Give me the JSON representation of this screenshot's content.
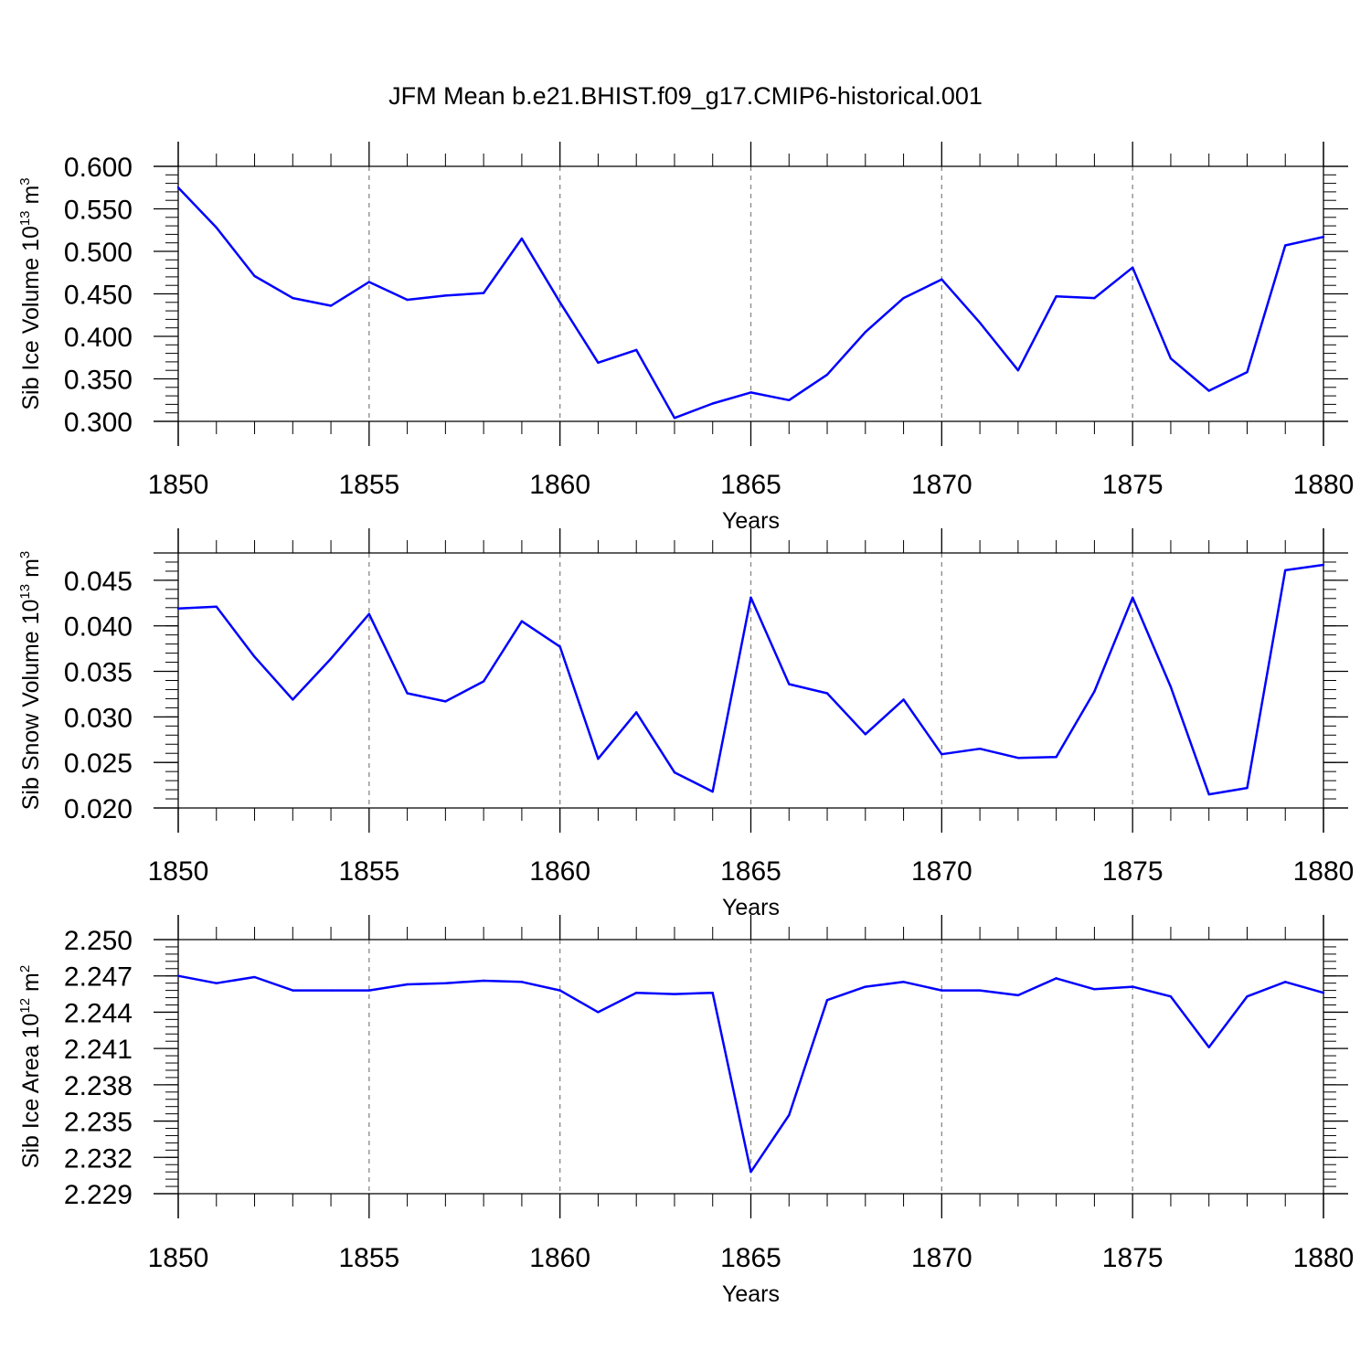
{
  "title": "JFM Mean b.e21.BHIST.f09_g17.CMIP6-historical.001",
  "line_color": "#0000ff",
  "chart_data": [
    {
      "type": "line",
      "xlabel": "Years",
      "ylabel": {
        "prefix": "Sib Ice Volume 10",
        "exp": "13",
        "unit": " m",
        "unit_exp": "3"
      },
      "xlim": [
        1850,
        1880
      ],
      "ylim": [
        0.3,
        0.6
      ],
      "xticks": [
        "1850",
        "1855",
        "1860",
        "1865",
        "1870",
        "1875",
        "1880"
      ],
      "yticks": [
        "0.300",
        "0.350",
        "0.400",
        "0.450",
        "0.500",
        "0.550",
        "0.600"
      ],
      "grid_x": true,
      "x": [
        1850,
        1851,
        1852,
        1853,
        1854,
        1855,
        1856,
        1857,
        1858,
        1859,
        1860,
        1861,
        1862,
        1863,
        1864,
        1865,
        1866,
        1867,
        1868,
        1869,
        1870,
        1871,
        1872,
        1873,
        1874,
        1875,
        1876,
        1877,
        1878,
        1879,
        1880
      ],
      "y": [
        0.575,
        0.528,
        0.471,
        0.445,
        0.436,
        0.464,
        0.443,
        0.448,
        0.451,
        0.515,
        0.44,
        0.369,
        0.384,
        0.304,
        0.321,
        0.334,
        0.325,
        0.355,
        0.405,
        0.445,
        0.467,
        0.416,
        0.36,
        0.447,
        0.445,
        0.481,
        0.374,
        0.336,
        0.358,
        0.507,
        0.517
      ]
    },
    {
      "type": "line",
      "xlabel": "Years",
      "ylabel": {
        "prefix": "Sib Snow Volume 10",
        "exp": "13",
        "unit": " m",
        "unit_exp": "3"
      },
      "xlim": [
        1850,
        1880
      ],
      "ylim": [
        0.02,
        0.048
      ],
      "xticks": [
        "1850",
        "1855",
        "1860",
        "1865",
        "1870",
        "1875",
        "1880"
      ],
      "yticks": [
        "0.020",
        "0.025",
        "0.030",
        "0.035",
        "0.040",
        "0.045"
      ],
      "grid_x": true,
      "x": [
        1850,
        1851,
        1852,
        1853,
        1854,
        1855,
        1856,
        1857,
        1858,
        1859,
        1860,
        1861,
        1862,
        1863,
        1864,
        1865,
        1866,
        1867,
        1868,
        1869,
        1870,
        1871,
        1872,
        1873,
        1874,
        1875,
        1876,
        1877,
        1878,
        1879,
        1880
      ],
      "y": [
        0.0419,
        0.0421,
        0.0366,
        0.0319,
        0.0364,
        0.0413,
        0.0326,
        0.0317,
        0.0339,
        0.0405,
        0.0377,
        0.0254,
        0.0305,
        0.0239,
        0.0218,
        0.0431,
        0.0336,
        0.0326,
        0.0281,
        0.0319,
        0.0259,
        0.0265,
        0.0255,
        0.0256,
        0.0328,
        0.0431,
        0.0333,
        0.0215,
        0.0222,
        0.0461,
        0.0467
      ]
    },
    {
      "type": "line",
      "xlabel": "Years",
      "ylabel": {
        "prefix": "Sib Ice Area 10",
        "exp": "12",
        "unit": " m",
        "unit_exp": "2"
      },
      "xlim": [
        1850,
        1880
      ],
      "ylim": [
        2.229,
        2.25
      ],
      "xticks": [
        "1850",
        "1855",
        "1860",
        "1865",
        "1870",
        "1875",
        "1880"
      ],
      "yticks": [
        "2.229",
        "2.232",
        "2.235",
        "2.238",
        "2.241",
        "2.244",
        "2.247",
        "2.250"
      ],
      "grid_x": true,
      "x": [
        1850,
        1851,
        1852,
        1853,
        1854,
        1855,
        1856,
        1857,
        1858,
        1859,
        1860,
        1861,
        1862,
        1863,
        1864,
        1865,
        1866,
        1867,
        1868,
        1869,
        1870,
        1871,
        1872,
        1873,
        1874,
        1875,
        1876,
        1877,
        1878,
        1879,
        1880
      ],
      "y": [
        2.247,
        2.2464,
        2.2469,
        2.2458,
        2.2458,
        2.2458,
        2.2463,
        2.2464,
        2.2466,
        2.2465,
        2.2458,
        2.244,
        2.2456,
        2.2455,
        2.2456,
        2.2308,
        2.2355,
        2.245,
        2.2461,
        2.2465,
        2.2458,
        2.2458,
        2.2454,
        2.2468,
        2.2459,
        2.2461,
        2.2453,
        2.2411,
        2.2453,
        2.2465,
        2.2456
      ]
    }
  ]
}
